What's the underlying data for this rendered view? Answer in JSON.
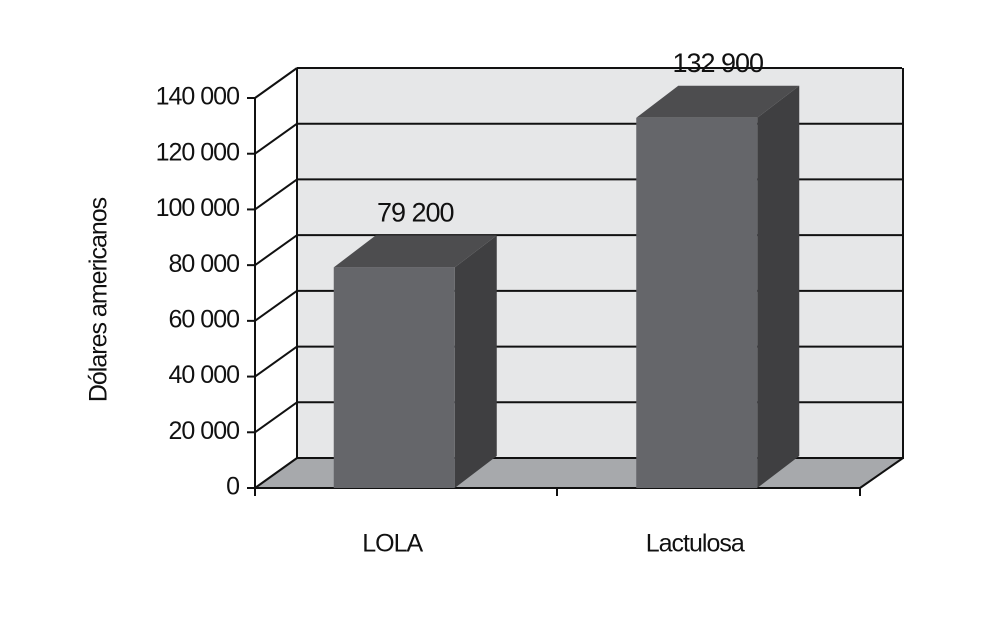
{
  "chart_data": {
    "type": "bar3d",
    "y_label": "Dólares americanos",
    "categories": [
      "LOLA",
      "Lactulosa"
    ],
    "values": [
      79200,
      132900
    ],
    "value_labels": [
      "79 200",
      "132 900"
    ],
    "color": "#65666a",
    "ylim": [
      0,
      140000
    ],
    "yticks": [
      0,
      {
        "value": 20000,
        "label": "20 000"
      },
      {
        "value": 40000,
        "label": "40 000"
      },
      {
        "value": 60000,
        "label": "60 000"
      },
      {
        "value": 80000,
        "label": "80 000"
      },
      {
        "value": 100000,
        "label": "100 000"
      },
      {
        "value": 120000,
        "label": "120 000"
      },
      {
        "value": 140000,
        "label": "140 000"
      }
    ],
    "grid": true
  }
}
